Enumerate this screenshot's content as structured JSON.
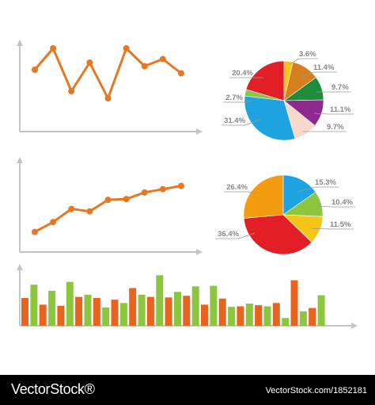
{
  "colors": {
    "axis": "#c4c4c8",
    "line": "#e87722",
    "bar_orange": "#e8641e",
    "bar_green": "#8cc63f",
    "label": "#888888",
    "footer_bg": "#000000",
    "footer_text": "#ffffff"
  },
  "chart_data": [
    {
      "type": "line",
      "x": [
        1,
        2,
        3,
        4,
        5,
        6,
        7,
        8,
        9
      ],
      "values": [
        6,
        9,
        3,
        7,
        2,
        9,
        6.5,
        7.5,
        5.5
      ],
      "ylim": [
        0,
        10
      ],
      "color": "#e87722",
      "grid": false
    },
    {
      "type": "pie",
      "slices": [
        {
          "label": "3.6%",
          "value": 3.6,
          "color": "#f5c518"
        },
        {
          "label": "11.4%",
          "value": 11.4,
          "color": "#d67f1f"
        },
        {
          "label": "9.7%",
          "value": 9.7,
          "color": "#1e8c3a"
        },
        {
          "label": "11.1%",
          "value": 11.1,
          "color": "#8e2a8f"
        },
        {
          "label": "9.7%",
          "value": 9.7,
          "color": "#f7d9cc"
        },
        {
          "label": "31.4%",
          "value": 31.4,
          "color": "#1ea3e0"
        },
        {
          "label": "2.7%",
          "value": 2.7,
          "color": "#8cc63f"
        },
        {
          "label": "20.4%",
          "value": 20.4,
          "color": "#e21f26"
        }
      ]
    },
    {
      "type": "line",
      "x": [
        1,
        2,
        3,
        4,
        5,
        6,
        7,
        8,
        9
      ],
      "values": [
        1,
        2.2,
        3.8,
        3.5,
        4.9,
        5,
        5.8,
        6.2,
        6.6
      ],
      "ylim": [
        0,
        8
      ],
      "color": "#e87722",
      "grid": false
    },
    {
      "type": "pie",
      "slices": [
        {
          "label": "15.3%",
          "value": 15.3,
          "color": "#1ea3e0"
        },
        {
          "label": "10.4%",
          "value": 10.4,
          "color": "#8cc63f"
        },
        {
          "label": "11.5%",
          "value": 11.5,
          "color": "#f5c518"
        },
        {
          "label": "36.4%",
          "value": 36.4,
          "color": "#e21f26"
        },
        {
          "label": "26.4%",
          "value": 26.4,
          "color": "#f39c12"
        }
      ]
    },
    {
      "type": "bar",
      "grid": false,
      "ylim": [
        0,
        10
      ],
      "series": [
        {
          "color": "#e8641e",
          "values": [
            5,
            3.8,
            3.6,
            5.2,
            5,
            4.7,
            6.8,
            5.2,
            5.1,
            5.4,
            3.8,
            4.9,
            3.5,
            3.7,
            4.1,
            8.2,
            3.2
          ]
        },
        {
          "color": "#8cc63f",
          "values": [
            7.4,
            6.3,
            7.9,
            5.6,
            3.3,
            4.1,
            5.6,
            9.1,
            6.1,
            7.1,
            7.2,
            3.4,
            4,
            3.5,
            1.4,
            2.6,
            5.5
          ]
        }
      ]
    }
  ],
  "footer": {
    "brand": "VectorStock®",
    "image_id": "VectorStock.com/1852181"
  }
}
